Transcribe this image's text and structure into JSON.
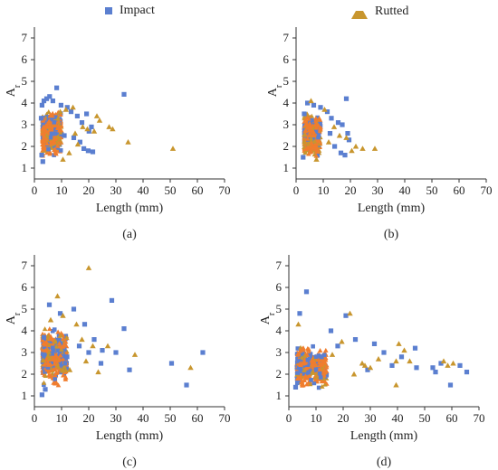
{
  "legend": {
    "impact": "Impact",
    "rutted": "Rutted"
  },
  "colors": {
    "impact": "#5b7fd0",
    "rutted": "#c8962e",
    "bulk": "#f07d2e"
  },
  "chart_data": [
    {
      "type": "scatter",
      "panel_label": "(a)",
      "xlabel": "Length (mm)",
      "ylabel": "A",
      "ylabel_sub": "r",
      "xlim": [
        0,
        70
      ],
      "ylim": [
        0.5,
        7.5
      ],
      "xticks": [
        0,
        10,
        20,
        30,
        40,
        50,
        60,
        70
      ],
      "yticks": [
        1,
        2,
        3,
        4,
        5,
        6,
        7
      ],
      "series": [
        {
          "name": "Impact",
          "marker": "square",
          "points": [
            [
              8.2,
              4.7
            ],
            [
              5.6,
              4.3
            ],
            [
              4.5,
              4.2
            ],
            [
              3.5,
              4.1
            ],
            [
              6.8,
              4.1
            ],
            [
              33,
              4.4
            ],
            [
              12.1,
              3.8
            ],
            [
              13.5,
              3.6
            ],
            [
              15.8,
              3.4
            ],
            [
              17.5,
              3.1
            ],
            [
              19.2,
              3.5
            ],
            [
              20.1,
              2.7
            ],
            [
              21,
              2.9
            ],
            [
              16.8,
              2.2
            ],
            [
              18.2,
              1.9
            ],
            [
              19.8,
              1.8
            ],
            [
              21.5,
              1.75
            ],
            [
              14.5,
              2.4
            ],
            [
              2.8,
              3.9
            ],
            [
              2.5,
              3.3
            ],
            [
              2.7,
              1.6
            ],
            [
              3.1,
              1.3
            ],
            [
              9.8,
              3.9
            ],
            [
              11,
              2.5
            ]
          ]
        },
        {
          "name": "Rutted",
          "marker": "triangle",
          "points": [
            [
              14.2,
              3.8
            ],
            [
              11.6,
              3.7
            ],
            [
              23,
              3.4
            ],
            [
              24,
              3.2
            ],
            [
              28.8,
              2.8
            ],
            [
              27.5,
              2.9
            ],
            [
              34.5,
              2.2
            ],
            [
              51,
              1.9
            ],
            [
              19.5,
              2.8
            ],
            [
              17.8,
              2.9
            ],
            [
              16,
              2.1
            ],
            [
              22,
              2.7
            ],
            [
              10.5,
              1.4
            ],
            [
              12.8,
              1.7
            ],
            [
              15,
              2.6
            ],
            [
              9.5,
              3.6
            ]
          ]
        }
      ],
      "cluster": {
        "x": [
          3,
          10
        ],
        "y": [
          1.4,
          3.8
        ]
      }
    },
    {
      "type": "scatter",
      "panel_label": "(b)",
      "xlabel": "Length (mm)",
      "ylabel": "A",
      "ylabel_sub": "r",
      "xlim": [
        0,
        70
      ],
      "ylim": [
        0.5,
        7.5
      ],
      "xticks": [
        0,
        10,
        20,
        30,
        40,
        50,
        60,
        70
      ],
      "yticks": [
        1,
        2,
        3,
        4,
        5,
        6,
        7
      ],
      "series": [
        {
          "name": "Impact",
          "marker": "square",
          "points": [
            [
              18.5,
              4.2
            ],
            [
              4.2,
              4.0
            ],
            [
              6.5,
              3.9
            ],
            [
              9,
              3.8
            ],
            [
              11.5,
              3.6
            ],
            [
              13,
              3.3
            ],
            [
              15.5,
              3.1
            ],
            [
              17,
              3.0
            ],
            [
              19,
              2.6
            ],
            [
              19.5,
              2.3
            ],
            [
              14.2,
              2.0
            ],
            [
              16.5,
              1.7
            ],
            [
              18,
              1.6
            ],
            [
              3,
              3.5
            ],
            [
              2.6,
              1.5
            ],
            [
              12.5,
              2.6
            ]
          ]
        },
        {
          "name": "Rutted",
          "marker": "triangle",
          "points": [
            [
              5.5,
              4.1
            ],
            [
              10.5,
              3.7
            ],
            [
              14,
              2.9
            ],
            [
              18.5,
              2.4
            ],
            [
              22,
              2.0
            ],
            [
              24.5,
              1.9
            ],
            [
              29,
              1.9
            ],
            [
              20.5,
              1.8
            ],
            [
              7.5,
              1.4
            ],
            [
              12,
              2.2
            ],
            [
              16,
              2.5
            ]
          ]
        }
      ],
      "cluster": {
        "x": [
          3,
          9
        ],
        "y": [
          1.4,
          3.6
        ]
      }
    },
    {
      "type": "scatter",
      "panel_label": "(c)",
      "xlabel": "Length (mm)",
      "ylabel": "A",
      "ylabel_sub": "r",
      "xlim": [
        0,
        70
      ],
      "ylim": [
        0.5,
        7.5
      ],
      "xticks": [
        0,
        10,
        20,
        30,
        40,
        50,
        60,
        70
      ],
      "yticks": [
        1,
        2,
        3,
        4,
        5,
        6,
        7
      ],
      "series": [
        {
          "name": "Impact",
          "marker": "square",
          "points": [
            [
              5.5,
              5.2
            ],
            [
              28.5,
              5.4
            ],
            [
              14.5,
              5.0
            ],
            [
              33,
              4.1
            ],
            [
              18.5,
              4.3
            ],
            [
              22,
              3.6
            ],
            [
              25,
              3.1
            ],
            [
              30,
              3.0
            ],
            [
              62,
              3.0
            ],
            [
              35,
              2.2
            ],
            [
              50.5,
              2.5
            ],
            [
              56,
              1.5
            ],
            [
              2.8,
              1.05
            ],
            [
              3.5,
              3.7
            ],
            [
              4,
              1.3
            ],
            [
              12,
              2.8
            ],
            [
              16.5,
              3.3
            ],
            [
              20,
              3.0
            ],
            [
              9.5,
              4.8
            ],
            [
              24.5,
              2.5
            ]
          ]
        },
        {
          "name": "Rutted",
          "marker": "triangle",
          "points": [
            [
              20,
              6.9
            ],
            [
              8.5,
              5.6
            ],
            [
              10.5,
              4.7
            ],
            [
              15.5,
              4.3
            ],
            [
              17.5,
              3.6
            ],
            [
              21.5,
              3.3
            ],
            [
              27,
              3.3
            ],
            [
              37,
              2.9
            ],
            [
              57.5,
              2.3
            ],
            [
              13,
              2.2
            ],
            [
              19,
              2.6
            ],
            [
              23.5,
              2.1
            ],
            [
              6,
              4.5
            ]
          ]
        }
      ],
      "cluster": {
        "x": [
          3,
          12
        ],
        "y": [
          1.3,
          4.4
        ]
      }
    },
    {
      "type": "scatter",
      "panel_label": "(d)",
      "xlabel": "Length (mm)",
      "ylabel": "A",
      "ylabel_sub": "r",
      "xlim": [
        0,
        70
      ],
      "ylim": [
        0.5,
        7.5
      ],
      "xticks": [
        0,
        10,
        20,
        30,
        40,
        50,
        60,
        70
      ],
      "yticks": [
        1,
        2,
        3,
        4,
        5,
        6,
        7
      ],
      "series": [
        {
          "name": "Impact",
          "marker": "square",
          "points": [
            [
              6.5,
              5.8
            ],
            [
              4,
              4.8
            ],
            [
              21,
              4.7
            ],
            [
              15.5,
              4.0
            ],
            [
              24.5,
              3.6
            ],
            [
              31.5,
              3.4
            ],
            [
              35,
              3.0
            ],
            [
              46.5,
              3.2
            ],
            [
              41.5,
              2.8
            ],
            [
              53,
              2.3
            ],
            [
              54,
              2.1
            ],
            [
              56,
              2.5
            ],
            [
              63,
              2.4
            ],
            [
              65.5,
              2.1
            ],
            [
              59.5,
              1.5
            ],
            [
              47,
              2.3
            ],
            [
              29,
              2.2
            ],
            [
              38,
              2.4
            ],
            [
              12,
              2.8
            ],
            [
              18,
              3.3
            ],
            [
              2.5,
              1.4
            ]
          ]
        },
        {
          "name": "Rutted",
          "marker": "triangle",
          "points": [
            [
              3.5,
              4.3
            ],
            [
              22.5,
              4.8
            ],
            [
              19.5,
              3.5
            ],
            [
              27,
              2.5
            ],
            [
              33,
              2.7
            ],
            [
              39.5,
              2.6
            ],
            [
              40.5,
              3.4
            ],
            [
              42.5,
              3.1
            ],
            [
              44.5,
              2.6
            ],
            [
              57,
              2.6
            ],
            [
              58.5,
              2.4
            ],
            [
              60.5,
              2.5
            ],
            [
              39.5,
              1.5
            ],
            [
              28,
              2.4
            ],
            [
              24,
              2.0
            ],
            [
              16,
              2.9
            ],
            [
              30,
              2.3
            ]
          ]
        }
      ],
      "cluster": {
        "x": [
          3,
          14
        ],
        "y": [
          1.3,
          3.4
        ]
      }
    }
  ]
}
